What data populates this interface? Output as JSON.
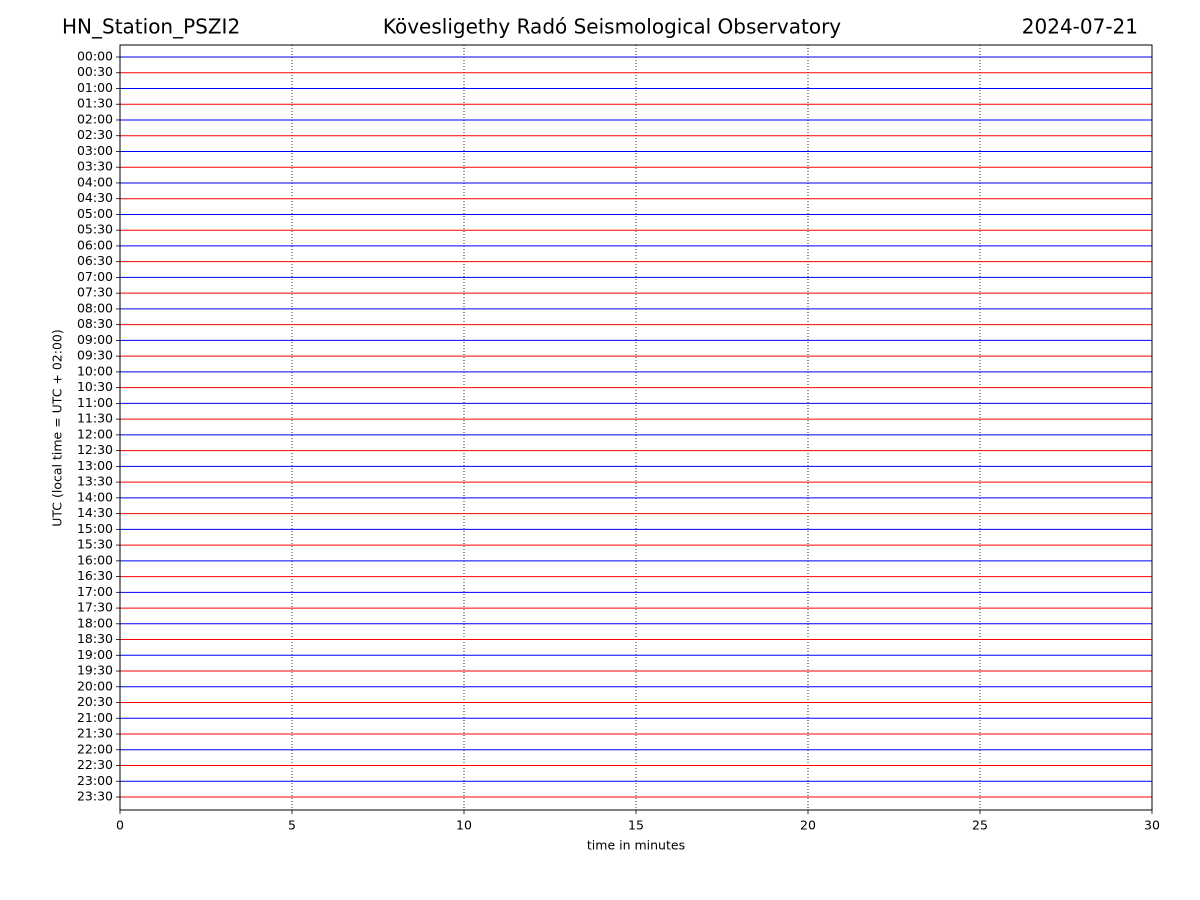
{
  "chart_data": {
    "type": "helicorder",
    "station": "HN_Station_PSZI2",
    "title": "Kövesligethy Radó Seismological Observatory",
    "date": "2024-07-21",
    "xlabel": "time in minutes",
    "ylabel": "UTC (local time = UTC + 02:00)",
    "categories": [
      "00:00",
      "00:30",
      "01:00",
      "01:30",
      "02:00",
      "02:30",
      "03:00",
      "03:30",
      "04:00",
      "04:30",
      "05:00",
      "05:30",
      "06:00",
      "06:30",
      "07:00",
      "07:30",
      "08:00",
      "08:30",
      "09:00",
      "09:30",
      "10:00",
      "10:30",
      "11:00",
      "11:30",
      "12:00",
      "12:30",
      "13:00",
      "13:30",
      "14:00",
      "14:30",
      "15:00",
      "15:30",
      "16:00",
      "16:30",
      "17:00",
      "17:30",
      "18:00",
      "18:30",
      "19:00",
      "19:30",
      "20:00",
      "20:30",
      "21:00",
      "21:30",
      "22:00",
      "22:30",
      "23:00",
      "23:30"
    ],
    "colors": [
      "#0000ff",
      "#ff0000"
    ],
    "xlim": [
      0,
      30
    ],
    "xticks": [
      0,
      5,
      10,
      15,
      20,
      25,
      30
    ],
    "grid": true
  }
}
